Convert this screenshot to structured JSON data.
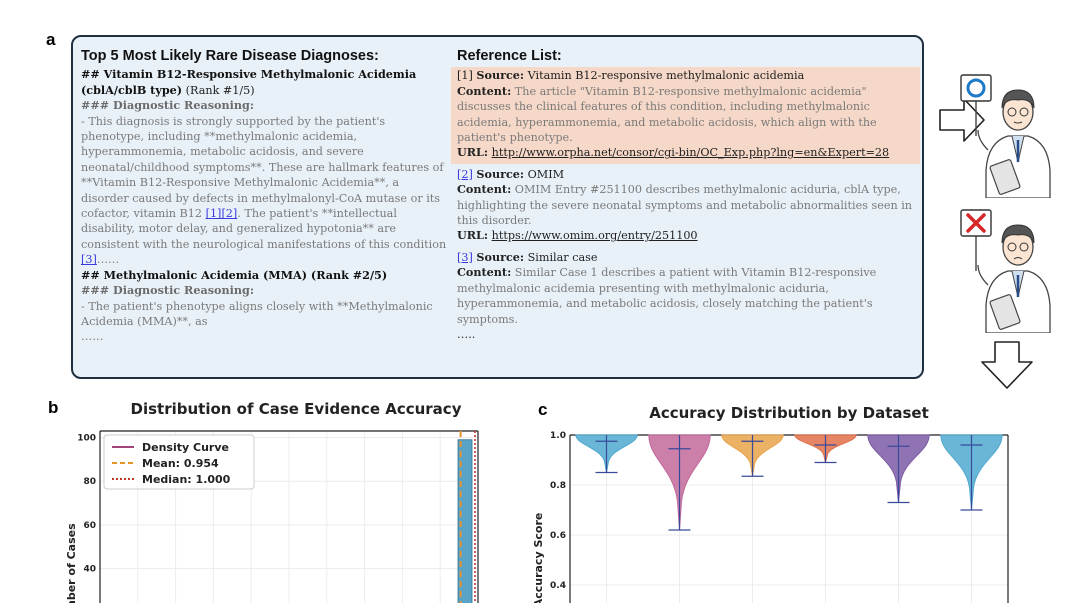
{
  "panels": {
    "a": "a",
    "b": "b",
    "c": "c"
  },
  "diagnoses": {
    "heading": "Top 5 Most Likely Rare Disease Diagnoses:",
    "d1_title": "## Vitamin B12-Responsive Methylmalonic Acidemia (cblA/cblB type)",
    "d1_rank": "(Rank #1/5)",
    "reasoning_label": "### Diagnostic Reasoning:",
    "d1_text_1": "- This diagnosis is strongly supported by the patient's phenotype, including **methylmalonic acidemia, hyperammonemia, metabolic acidosis, and severe neonatal/childhood symptoms**. These are hallmark features of **Vitamin B12-Responsive Methylmalonic Acidemia**, a disorder caused by defects in methylmalonyl-CoA mutase or its cofactor, vitamin B12",
    "cite_1": "[1]",
    "cite_2": "[2]",
    "d1_text_2": ". The patient's **intellectual disability, motor delay, and generalized hypotonia** are consistent with the neurological manifestations of this condition",
    "cite_3": "[3]",
    "d1_tail": "……",
    "d2_title": "## Methylmalonic Acidemia (MMA) (Rank #2/5)",
    "reasoning_label_2": "### Diagnostic Reasoning:",
    "d2_text": "- The patient's phenotype aligns closely with **Methylmalonic Acidemia (MMA)**, as",
    "d2_tail": "……"
  },
  "references": {
    "heading": "Reference List:",
    "labels": {
      "source": "Source",
      "content": "Content",
      "url": "URL"
    },
    "items": [
      {
        "num": "[1]",
        "source": "Vitamin B12-responsive methylmalonic acidemia",
        "content": "The article \"Vitamin B12-responsive methylmalonic acidemia\" discusses the clinical features of this condition, including methylmalonic acidemia, hyperammonemia, and metabolic acidosis, which align with the patient's phenotype.",
        "url": "http://www.orpha.net/consor/cgi-bin/OC_Exp.php?lng=en&Expert=28"
      },
      {
        "num": "[2]",
        "source": "OMIM",
        "content": "OMIM Entry #251100 describes methylmalonic aciduria, cblA type, highlighting the severe neonatal symptoms and metabolic abnormalities seen in this disorder.",
        "url": "https://www.omim.org/entry/251100"
      },
      {
        "num": "[3]",
        "source": "Similar case",
        "content": "Similar Case 1 describes a patient with Vitamin B12-responsive methylmalonic acidemia presenting with methylmalonic aciduria, hyperammonemia, and metabolic acidosis, closely matching the patient's symptoms."
      }
    ],
    "tail": "….."
  },
  "colors": {
    "box_bg": "#e9f1f8",
    "box_border": "#1f2f3f",
    "highlight": "#f6d8c8",
    "density": "#a0457a",
    "mean": "#e8922a",
    "median": "#c0392b",
    "bar": "#5aa3c8",
    "check_blue": "#1f78c8",
    "cross_red": "#d62828",
    "violins": [
      "#4fa9cf",
      "#c2689a",
      "#e8a34a",
      "#e0704a",
      "#7d5ba6",
      "#4fa9cf"
    ]
  },
  "chart_data": [
    {
      "type": "bar",
      "title": "Distribution of Case Evidence Accuracy",
      "xlabel": "",
      "ylabel": "Number of Cases",
      "ylim": [
        0,
        103
      ],
      "yticks": [
        40,
        60,
        80,
        100
      ],
      "legend": [
        "Density Curve",
        "Mean: 0.954",
        "Median: 1.000"
      ],
      "legend_position": "top-left",
      "mean": 0.954,
      "median": 1.0,
      "bars": [
        {
          "x": 1.0,
          "value": 99
        }
      ],
      "grid": true
    },
    {
      "type": "violin",
      "title": "Accuracy Distribution by Dataset",
      "ylabel": "Accuracy Score",
      "ylim": [
        0.3,
        1.0
      ],
      "yticks": [
        "0.4",
        "0.6",
        "0.8",
        "1.0"
      ],
      "grid": true,
      "series": [
        {
          "max": 1.0,
          "median": 0.975,
          "min": 0.85
        },
        {
          "max": 1.0,
          "median": 0.945,
          "min": 0.62
        },
        {
          "max": 1.0,
          "median": 0.975,
          "min": 0.835
        },
        {
          "max": 1.0,
          "median": 0.96,
          "min": 0.89
        },
        {
          "max": 1.0,
          "median": 0.955,
          "min": 0.73
        },
        {
          "max": 1.0,
          "median": 0.96,
          "min": 0.7
        }
      ]
    }
  ]
}
